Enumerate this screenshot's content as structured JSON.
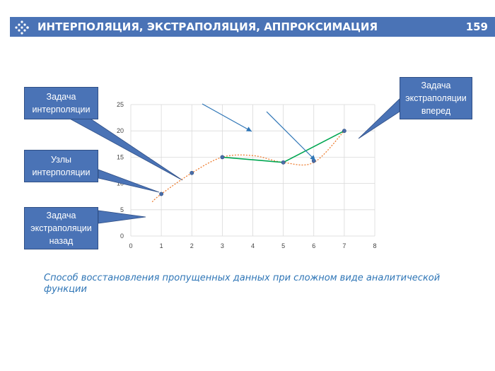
{
  "header": {
    "title": "ИНТЕРПОЛЯЦИЯ, ЭКСТРАПОЛЯЦИЯ, АППРОКСИМАЦИЯ",
    "page_number": "159",
    "bar_color": "#4a73b6",
    "logo_icon": "dotted-arrow-logo-icon"
  },
  "callouts": {
    "interpolation_task": "Задача\nинтерполяции",
    "interpolation_nodes": "Узлы\nинтерполяции",
    "extrapolation_back": "Задача\nэкстраполяции\nназад",
    "extrapolation_forward": "Задача\nэкстраполяции\nвперед"
  },
  "caption": "Способ восстановления пропущенных данных при сложном виде аналитической функции",
  "chart_data": {
    "type": "scatter",
    "xlim": [
      0,
      8
    ],
    "ylim": [
      0,
      25
    ],
    "x_ticks": [
      "0",
      "1",
      "2",
      "3",
      "4",
      "5",
      "6",
      "7",
      "8"
    ],
    "y_ticks": [
      "0",
      "5",
      "10",
      "15",
      "20",
      "25"
    ],
    "grid": true,
    "points": [
      {
        "x": 1,
        "y": 8
      },
      {
        "x": 2,
        "y": 12
      },
      {
        "x": 3,
        "y": 15
      },
      {
        "x": 5,
        "y": 14
      },
      {
        "x": 6,
        "y": 14.3
      },
      {
        "x": 7,
        "y": 20
      }
    ],
    "smooth_curve": {
      "style": "dotted",
      "color": "#ed7d31",
      "x": [
        0.7,
        1,
        2,
        3,
        4,
        5,
        6,
        7
      ],
      "y": [
        6.5,
        8,
        12,
        15,
        15.3,
        14,
        14,
        20
      ]
    },
    "linear_segments": {
      "color": "#00a651",
      "x": [
        3,
        5,
        7
      ],
      "y": [
        15,
        14,
        20
      ]
    },
    "colors": {
      "marker": "#4a6ea8",
      "arrow": "#2e75b6"
    }
  }
}
